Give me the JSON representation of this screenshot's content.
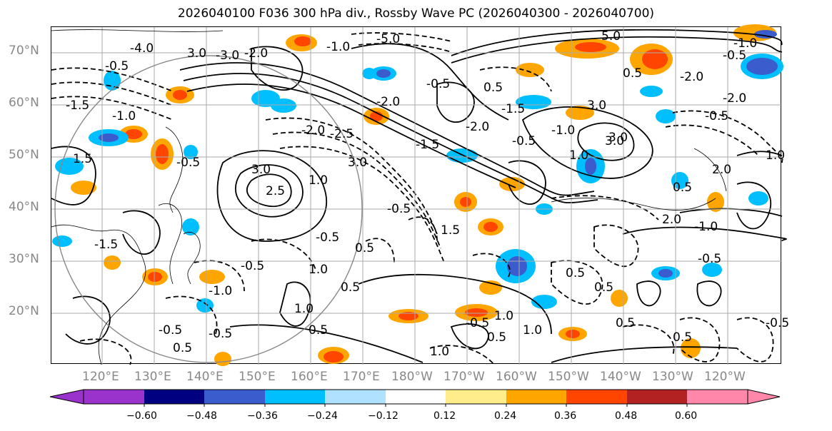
{
  "title": "2026040100 F036 300 hPa div., Rossby Wave PC (2026040300 - 2026040700)",
  "latitude_labels": [
    "70°N",
    "60°N",
    "50°N",
    "40°N",
    "30°N",
    "20°N"
  ],
  "longitude_labels": [
    "120°E",
    "130°E",
    "140°E",
    "150°E",
    "160°E",
    "170°E",
    "180°W",
    "170°W",
    "160°W",
    "150°W",
    "140°W",
    "130°W",
    "120°W"
  ],
  "colorbar": {
    "colors": [
      "#9a33cc",
      "#000080",
      "#3a5ccc",
      "#00bfff",
      "#b0e2ff",
      "#ffffff",
      "#ffec8b",
      "#ffa500",
      "#ff4500",
      "#b22222",
      "#ff88aa"
    ],
    "tick_labels": [
      "−0.60",
      "−0.48",
      "−0.36",
      "−0.24",
      "−0.12",
      "0.12",
      "0.24",
      "0.36",
      "0.48",
      "0.60"
    ]
  },
  "contour_labels": [
    "-5.0",
    "-1.0",
    "5.0",
    "-1.0",
    "-4.0",
    "-0.5",
    "0.5",
    "3.0",
    "-3.0",
    "-2.0",
    "-0.5",
    "-2.0",
    "-2.0",
    "-1.5",
    "-1.0",
    "-2.0",
    "-0.5",
    "0.5",
    "-1.5",
    "-2.0",
    "-0.5",
    "-1.5",
    "-2.5",
    "-2.0",
    "3.0",
    "3.0",
    "-1.0",
    "1.0",
    "-0.5",
    "2.0",
    "1.0",
    "1.5",
    "-0.5",
    "3.0",
    "2.5",
    "3.0",
    "1.0",
    "3.0",
    "0.5",
    "-0.5",
    "1.5",
    "-1.0",
    "-1.5",
    "2.0",
    "-0.5",
    "0.5",
    "-0.5",
    "-0.5",
    "1.0",
    "0.5",
    "-1.0",
    "0.5",
    "0.5",
    "-0.5",
    "0.5",
    "0.5",
    "1.0",
    "1.0",
    "0.5",
    "0.5",
    "-0.5",
    "-0.5",
    "-0.5",
    "1.0",
    "1.0",
    "0.5"
  ]
}
